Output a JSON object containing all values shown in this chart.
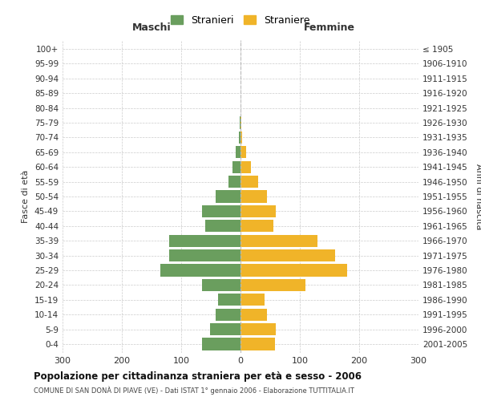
{
  "age_groups": [
    "0-4",
    "5-9",
    "10-14",
    "15-19",
    "20-24",
    "25-29",
    "30-34",
    "35-39",
    "40-44",
    "45-49",
    "50-54",
    "55-59",
    "60-64",
    "65-69",
    "70-74",
    "75-79",
    "80-84",
    "85-89",
    "90-94",
    "95-99",
    "100+"
  ],
  "birth_years": [
    "2001-2005",
    "1996-2000",
    "1991-1995",
    "1986-1990",
    "1981-1985",
    "1976-1980",
    "1971-1975",
    "1966-1970",
    "1961-1965",
    "1956-1960",
    "1951-1955",
    "1946-1950",
    "1941-1945",
    "1936-1940",
    "1931-1935",
    "1926-1930",
    "1921-1925",
    "1916-1920",
    "1911-1915",
    "1906-1910",
    "≤ 1905"
  ],
  "males": [
    65,
    52,
    42,
    38,
    65,
    135,
    120,
    120,
    60,
    65,
    42,
    20,
    14,
    8,
    3,
    2,
    0,
    0,
    0,
    0,
    0
  ],
  "females": [
    58,
    60,
    45,
    40,
    110,
    180,
    160,
    130,
    55,
    60,
    45,
    30,
    18,
    10,
    3,
    2,
    0,
    0,
    0,
    0,
    0
  ],
  "male_color": "#6a9e5e",
  "female_color": "#f0b429",
  "title": "Popolazione per cittadinanza straniera per età e sesso - 2006",
  "subtitle": "COMUNE DI SAN DONÀ DI PIAVE (VE) - Dati ISTAT 1° gennaio 2006 - Elaborazione TUTTITALIA.IT",
  "xlabel_left": "Maschi",
  "xlabel_right": "Femmine",
  "ylabel_left": "Fasce di età",
  "ylabel_right": "Anni di nascita",
  "legend_male": "Stranieri",
  "legend_female": "Straniere",
  "xlim": 300,
  "background_color": "#ffffff",
  "grid_color": "#cccccc"
}
